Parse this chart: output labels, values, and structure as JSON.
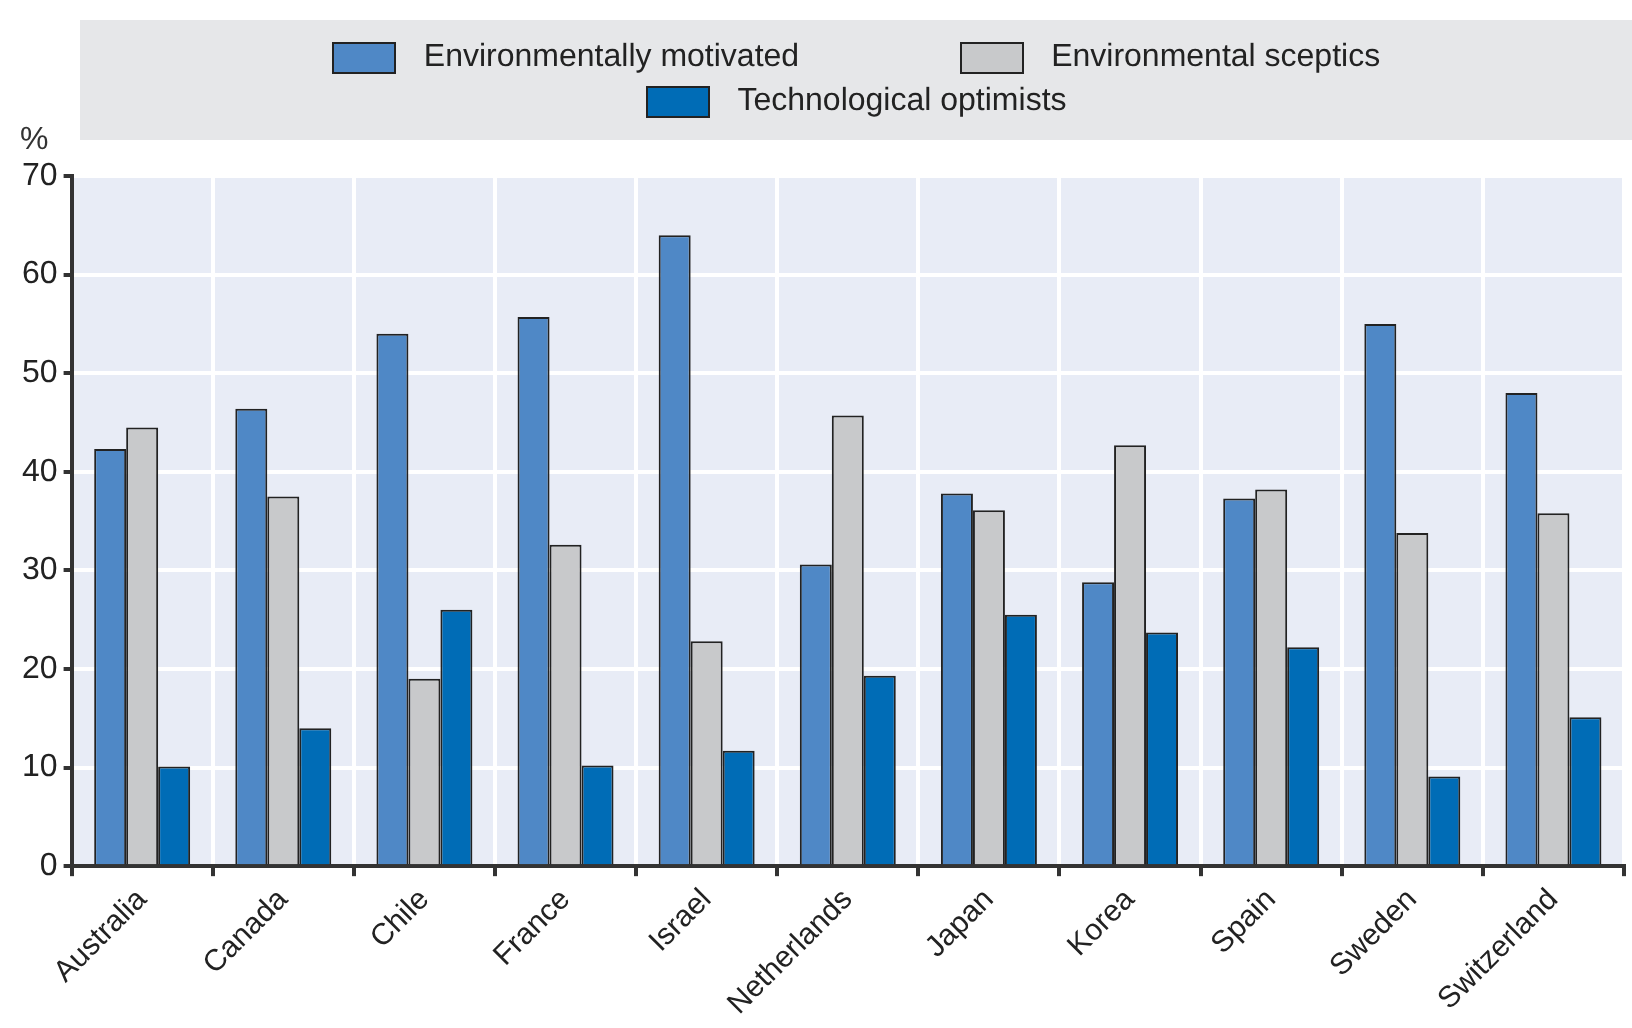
{
  "chart_data": {
    "type": "bar",
    "ylabel": "%",
    "categories": [
      "Australia",
      "Canada",
      "Chile",
      "France",
      "Israel",
      "Netherlands",
      "Japan",
      "Korea",
      "Spain",
      "Sweden",
      "Switzerland"
    ],
    "series": [
      {
        "name": "Environmentally motivated",
        "color": "#4f88c6",
        "values": [
          42.3,
          46.4,
          54,
          55.7,
          64,
          30.6,
          37.8,
          28.8,
          37.3,
          55,
          48
        ]
      },
      {
        "name": "Environmental sceptics",
        "color": "#c8c9cb",
        "values": [
          44.5,
          37.5,
          19,
          32.6,
          22.8,
          45.7,
          36.1,
          42.7,
          38.2,
          33.8,
          35.8
        ]
      },
      {
        "name": "Technological optimists",
        "color": "#006cb6",
        "values": [
          10.1,
          14,
          26,
          10.2,
          11.7,
          19.3,
          25.5,
          23.7,
          22.2,
          9.1,
          15.1
        ]
      }
    ],
    "ylim": [
      0,
      70
    ],
    "yticks": [
      0,
      10,
      20,
      30,
      40,
      50,
      60,
      70
    ],
    "grid": true,
    "legend": "top"
  }
}
